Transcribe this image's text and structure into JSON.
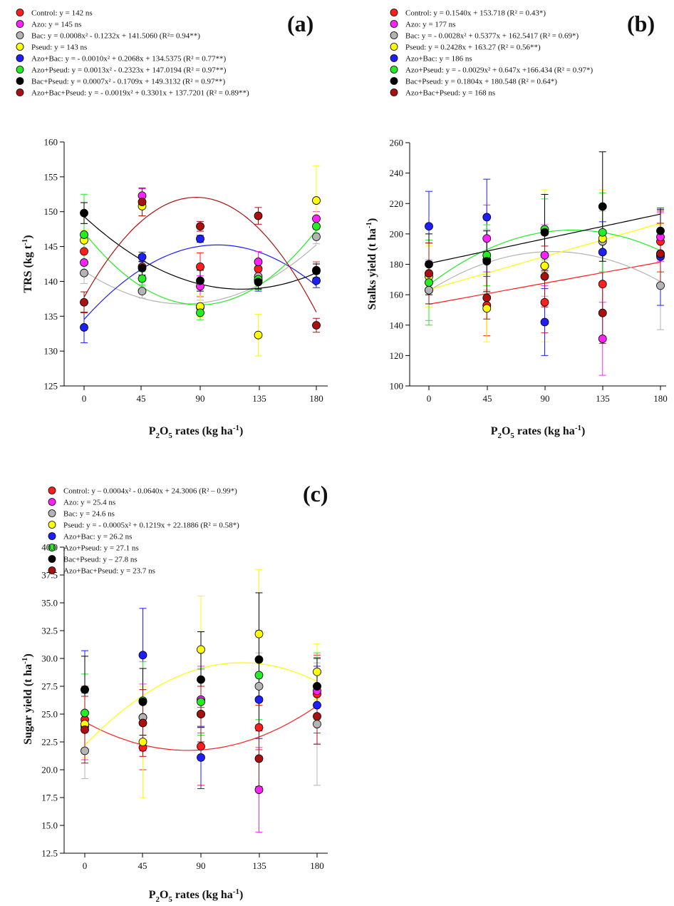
{
  "colors": {
    "Control": "#ff1e1e",
    "Azo": "#ff22ff",
    "Bac": "#b4b4b4",
    "Pseud": "#ffff00",
    "Azo+Bac": "#1e1eff",
    "Azo+Pseud": "#22ee22",
    "Bac+Pseud": "#000000",
    "Azo+Bac+Pseud": "#aa1010"
  },
  "chart_data": [
    {
      "panel": "(a)",
      "type": "scatter",
      "xlabel": "P2O5 rates (kg ha-1)",
      "ylabel": "TRS (kg t-1)",
      "x": [
        0,
        45,
        90,
        135,
        180
      ],
      "xlim": [
        0,
        180
      ],
      "ylim": [
        125,
        160
      ],
      "yticks": [
        125,
        130,
        135,
        140,
        145,
        150,
        155,
        160
      ],
      "series": [
        {
          "name": "Control",
          "eq": "y = 142 ns",
          "coef": [
            142
          ],
          "values": [
            144.3,
            142.1,
            142.1,
            141.8,
            141.6
          ],
          "err": [
            1.5,
            1.5,
            2.0,
            1.0,
            1.2
          ]
        },
        {
          "name": "Azo",
          "eq": "y = 145 ns",
          "coef": [
            145
          ],
          "values": [
            142.7,
            152.3,
            139.3,
            142.8,
            149.0
          ],
          "err": [
            1.5,
            1.0,
            1.5,
            1.5,
            1.0
          ]
        },
        {
          "name": "Bac",
          "eq": "y = 0.0008x² - 0.1232x + 141.5060 (R²= 0.94**)",
          "coef": [
            141.506,
            -0.1232,
            0.0008
          ],
          "values": [
            141.2,
            138.6,
            136.3,
            140.7,
            146.4
          ],
          "err": [
            1.5,
            1.0,
            1.0,
            1.0,
            1.0
          ]
        },
        {
          "name": "Pseud",
          "eq": "y = 143 ns",
          "coef": [
            143
          ],
          "values": [
            145.9,
            150.8,
            136.4,
            132.3,
            151.6
          ],
          "err": [
            1.5,
            1.5,
            1.5,
            3.0,
            5.0
          ]
        },
        {
          "name": "Azo+Bac",
          "eq": "y = - 0.0010x² + 0.2068x + 134.5375 (R² = 0.77**)",
          "coef": [
            134.5375,
            0.2068,
            -0.001
          ],
          "values": [
            133.4,
            143.5,
            146.1,
            140.1,
            140.1
          ],
          "err": [
            2.2,
            0.7,
            0.5,
            1.5,
            1.0
          ]
        },
        {
          "name": "Azo+Pseud",
          "eq": "y = 0.0013x² - 0.2323x + 147.0194 (R² = 0.97**)",
          "coef": [
            147.0194,
            -0.2323,
            0.0013
          ],
          "values": [
            146.7,
            140.4,
            135.5,
            140.3,
            147.9
          ],
          "err": [
            5.8,
            1.0,
            1.0,
            1.5,
            1.0
          ]
        },
        {
          "name": "Bac+Pseud",
          "eq": "y = 0.0007x² - 0.1709x + 149.3132 (R² = 0.97**)",
          "coef": [
            149.3132,
            -0.1709,
            0.0007
          ],
          "values": [
            149.8,
            141.9,
            140.1,
            139.9,
            141.5
          ],
          "err": [
            1.5,
            1.0,
            1.5,
            1.0,
            1.0
          ]
        },
        {
          "name": "Azo+Bac+Pseud",
          "eq": "y = - 0.0019x² + 0.3301x + 137.7201 (R² = 0.89**)",
          "coef": [
            137.7201,
            0.3301,
            -0.0019
          ],
          "values": [
            137.0,
            151.4,
            147.9,
            149.4,
            133.7
          ],
          "err": [
            1.5,
            2.0,
            0.7,
            1.2,
            1.0
          ]
        }
      ]
    },
    {
      "panel": "(b)",
      "type": "scatter",
      "xlabel": "P2O5 rates (kg ha-1)",
      "ylabel": "Stalks yield (t ha-1)",
      "x": [
        0,
        45,
        90,
        135,
        180
      ],
      "xlim": [
        0,
        180
      ],
      "ylim": [
        100,
        260
      ],
      "yticks": [
        100,
        120,
        140,
        160,
        180,
        200,
        220,
        240,
        260
      ],
      "series": [
        {
          "name": "Control",
          "eq": "y = 0.1540x + 153.718 (R² = 0.43*)",
          "coef": [
            153.718,
            0.154
          ],
          "values": [
            174.0,
            153.0,
            155.0,
            167.0,
            195.0
          ],
          "err": [
            20,
            20,
            20,
            20,
            20
          ]
        },
        {
          "name": "Azo",
          "eq": "y = 177 ns",
          "coef": [
            177
          ],
          "values": [
            163.0,
            197.0,
            186.0,
            131.0,
            198.0
          ],
          "err": [
            20,
            22,
            20,
            24,
            16
          ]
        },
        {
          "name": "Bac",
          "eq": "y = - 0.0028x² + 0.5377x + 162.5417 (R² = 0.69*)",
          "coef": [
            162.5417,
            0.5377,
            -0.0028
          ],
          "values": [
            163.0,
            183.0,
            179.0,
            195.0,
            166.0
          ],
          "err": [
            20,
            20,
            20,
            20,
            29
          ]
        },
        {
          "name": "Pseud",
          "eq": "y = 0.2428x + 163.27 (R² = 0.56**)",
          "coef": [
            163.27,
            0.2428
          ],
          "values": [
            172.0,
            151.0,
            179.0,
            197.0,
            186.0
          ],
          "err": [
            20,
            22,
            50,
            32,
            20
          ]
        },
        {
          "name": "Azo+Bac",
          "eq": "y = 186 ns",
          "coef": [
            186
          ],
          "values": [
            205.0,
            211.0,
            142.0,
            188.0,
            185.0
          ],
          "err": [
            23,
            25,
            22,
            20,
            32
          ]
        },
        {
          "name": "Azo+Pseud",
          "eq": "y = - 0.0029x² + 0.647x +166.434 (R² = 0.97*)",
          "coef": [
            166.434,
            0.647,
            -0.0029
          ],
          "values": [
            168.0,
            186.0,
            203.0,
            201.0,
            187.0
          ],
          "err": [
            28,
            20,
            20,
            26,
            20
          ]
        },
        {
          "name": "Bac+Pseud",
          "eq": "y = 0.1804x + 180.548 (R² = 0.64*)",
          "coef": [
            180.548,
            0.1804
          ],
          "values": [
            180.0,
            182.0,
            201.0,
            218.0,
            202.0
          ],
          "err": [
            20,
            20,
            25,
            36,
            14
          ]
        },
        {
          "name": "Azo+Bac+Pseud",
          "eq": "y = 168 ns",
          "coef": [
            168
          ],
          "values": [
            174.0,
            158.0,
            172.0,
            148.0,
            187.0
          ],
          "err": [
            20,
            14,
            20,
            20,
            20
          ]
        }
      ]
    },
    {
      "panel": "(c)",
      "type": "scatter",
      "xlabel": "P2O5 rates (kg ha-1)",
      "ylabel": "Sugar yield (t ha-1)",
      "x": [
        0,
        45,
        90,
        135,
        180
      ],
      "xlim": [
        0,
        180
      ],
      "ylim": [
        12.5,
        40.0
      ],
      "yticks": [
        12.5,
        15.0,
        17.5,
        20.0,
        22.5,
        25.0,
        27.5,
        30.0,
        32.5,
        35.0,
        37.5,
        40.0
      ],
      "series": [
        {
          "name": "Control",
          "eq": "y – 0.0004x² - 0.0640x + 24.3006 (R² – 0.99*)",
          "coef": [
            24.3006,
            -0.064,
            0.0004
          ],
          "values": [
            24.5,
            22.0,
            22.1,
            23.8,
            26.8
          ],
          "err": [
            3.0,
            2.0,
            3.5,
            2.0,
            3.5
          ]
        },
        {
          "name": "Azo",
          "eq": "y = 25.4 ns",
          "coef": [
            25.4
          ],
          "values": [
            23.9,
            24.7,
            26.3,
            18.2,
            27.1
          ],
          "err": [
            3.0,
            3.0,
            3.0,
            3.8,
            3.0
          ]
        },
        {
          "name": "Bac",
          "eq": "y = 24.6 ns",
          "coef": [
            24.6
          ],
          "values": [
            21.7,
            24.7,
            25.0,
            27.5,
            24.1
          ],
          "err": [
            2.5,
            2.5,
            4.0,
            3.0,
            5.5
          ]
        },
        {
          "name": "Pseud",
          "eq": "y = - 0.0005x² + 0.1219x + 22.1886 (R² = 0.58*)",
          "coef": [
            22.1886,
            0.1219,
            -0.0005
          ],
          "values": [
            24.1,
            22.5,
            30.8,
            32.2,
            28.8
          ],
          "err": [
            3.0,
            5.0,
            4.8,
            5.8,
            2.5
          ]
        },
        {
          "name": "Azo+Bac",
          "eq": "y = 26.2 ns",
          "coef": [
            26.2
          ],
          "values": [
            27.2,
            30.3,
            21.1,
            26.3,
            25.8
          ],
          "err": [
            3.5,
            4.2,
            2.8,
            3.5,
            3.5
          ]
        },
        {
          "name": "Azo+Pseud",
          "eq": "y = 27.1 ns",
          "coef": [
            27.1
          ],
          "values": [
            25.1,
            26.2,
            26.1,
            28.5,
            27.5
          ],
          "err": [
            3.5,
            3.5,
            3.0,
            4.0,
            3.0
          ]
        },
        {
          "name": "Bac+Pseud",
          "eq": "y – 27.8 ns",
          "coef": [
            27.8
          ],
          "values": [
            27.2,
            26.1,
            28.1,
            29.9,
            27.5
          ],
          "err": [
            3.0,
            3.0,
            4.3,
            6.0,
            2.5
          ]
        },
        {
          "name": "Azo+Bac+Pseud",
          "eq": "y = 23.7 ns",
          "coef": [
            23.7
          ],
          "values": [
            23.6,
            24.2,
            25.0,
            21.0,
            24.8
          ],
          "err": [
            3.0,
            3.0,
            2.5,
            2.5,
            2.5
          ]
        }
      ]
    }
  ]
}
